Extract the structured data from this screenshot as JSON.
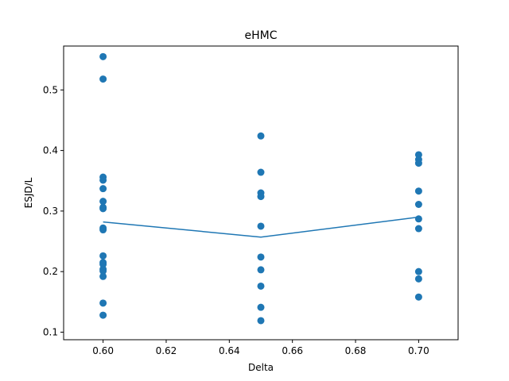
{
  "chart_data": {
    "type": "scatter",
    "title": "eHMC",
    "xlabel": "Delta",
    "ylabel": "ESJD/L",
    "xlim": [
      0.5875,
      0.7125
    ],
    "ylim": [
      0.0875,
      0.5725
    ],
    "xticks": [
      "0.60",
      "0.62",
      "0.64",
      "0.66",
      "0.68",
      "0.70"
    ],
    "xtick_values": [
      0.6,
      0.62,
      0.64,
      0.66,
      0.68,
      0.7
    ],
    "yticks": [
      "0.1",
      "0.2",
      "0.3",
      "0.4",
      "0.5"
    ],
    "ytick_values": [
      0.1,
      0.2,
      0.3,
      0.4,
      0.5
    ],
    "grid": false,
    "color": "#1f77b4",
    "series": [
      {
        "type": "scatter",
        "points": [
          [
            0.6,
            0.555
          ],
          [
            0.6,
            0.518
          ],
          [
            0.6,
            0.356
          ],
          [
            0.6,
            0.351
          ],
          [
            0.6,
            0.337
          ],
          [
            0.6,
            0.316
          ],
          [
            0.6,
            0.306
          ],
          [
            0.6,
            0.304
          ],
          [
            0.6,
            0.272
          ],
          [
            0.6,
            0.269
          ],
          [
            0.6,
            0.226
          ],
          [
            0.6,
            0.215
          ],
          [
            0.6,
            0.212
          ],
          [
            0.6,
            0.204
          ],
          [
            0.6,
            0.201
          ],
          [
            0.6,
            0.192
          ],
          [
            0.6,
            0.148
          ],
          [
            0.6,
            0.128
          ],
          [
            0.65,
            0.424
          ],
          [
            0.65,
            0.364
          ],
          [
            0.65,
            0.33
          ],
          [
            0.65,
            0.324
          ],
          [
            0.65,
            0.275
          ],
          [
            0.65,
            0.224
          ],
          [
            0.65,
            0.203
          ],
          [
            0.65,
            0.176
          ],
          [
            0.65,
            0.141
          ],
          [
            0.65,
            0.119
          ],
          [
            0.7,
            0.393
          ],
          [
            0.7,
            0.385
          ],
          [
            0.7,
            0.379
          ],
          [
            0.7,
            0.333
          ],
          [
            0.7,
            0.311
          ],
          [
            0.7,
            0.287
          ],
          [
            0.7,
            0.271
          ],
          [
            0.7,
            0.2
          ],
          [
            0.7,
            0.188
          ],
          [
            0.7,
            0.158
          ]
        ]
      },
      {
        "type": "line",
        "x": [
          0.6,
          0.65,
          0.7
        ],
        "y": [
          0.282,
          0.257,
          0.29
        ]
      }
    ]
  }
}
